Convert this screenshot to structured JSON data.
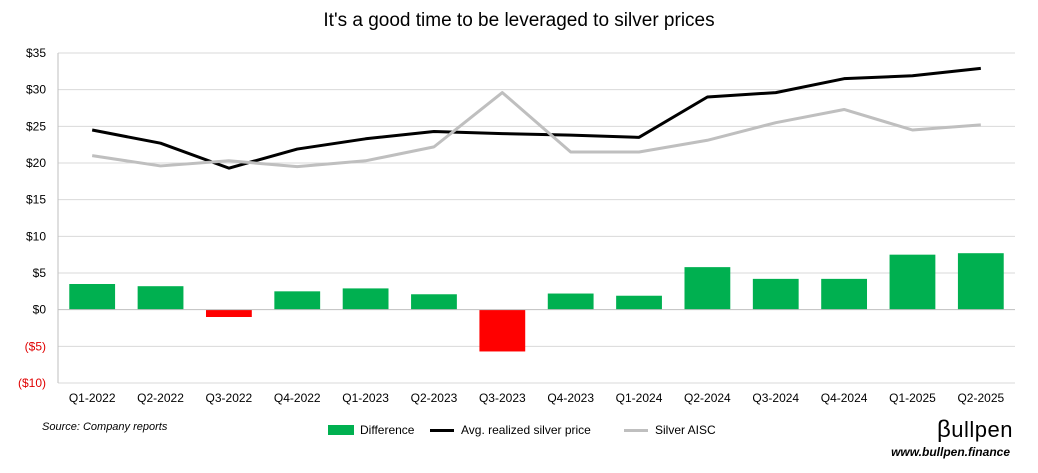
{
  "chart_data": {
    "type": "bar+line",
    "title": "It's a good time to be leveraged to silver prices",
    "categories": [
      "Q1-2022",
      "Q2-2022",
      "Q3-2022",
      "Q4-2022",
      "Q1-2023",
      "Q2-2023",
      "Q3-2023",
      "Q4-2023",
      "Q1-2024",
      "Q2-2024",
      "Q3-2024",
      "Q4-2024",
      "Q1-2025",
      "Q2-2025"
    ],
    "ylim": [
      -10,
      35
    ],
    "y_ticks": [
      35,
      30,
      25,
      20,
      15,
      10,
      5,
      0,
      -5,
      -10
    ],
    "y_tick_labels": [
      "$35",
      "$30",
      "$25",
      "$20",
      "$15",
      "$10",
      "$5",
      "$0",
      "($5)",
      "($10)"
    ],
    "grid": true,
    "series": [
      {
        "name": "Difference",
        "kind": "bar",
        "color": "#00b050",
        "negative_color": "#ff0000",
        "values": [
          3.5,
          3.2,
          -1.0,
          2.5,
          2.9,
          2.1,
          -5.7,
          2.2,
          1.9,
          5.8,
          4.2,
          4.2,
          7.5,
          7.7
        ]
      },
      {
        "name": "Avg. realized silver price",
        "kind": "line",
        "color": "#000000",
        "values": [
          24.5,
          22.7,
          19.3,
          21.9,
          23.3,
          24.3,
          24.0,
          23.8,
          23.5,
          29.0,
          29.6,
          31.5,
          31.9,
          32.9
        ]
      },
      {
        "name": "Silver AISC",
        "kind": "line",
        "color": "#bfbfbf",
        "values": [
          21.0,
          19.6,
          20.3,
          19.5,
          20.3,
          22.2,
          29.6,
          21.5,
          21.5,
          23.1,
          25.5,
          27.3,
          24.5,
          25.2
        ]
      }
    ]
  },
  "legend": {
    "difference": "Difference",
    "avg_price": "Avg. realized silver price",
    "aisc": "Silver AISC"
  },
  "source": "Source: Company reports",
  "brand": {
    "name": "ullpen",
    "symbol": "β",
    "url": "www.bullpen.finance"
  }
}
